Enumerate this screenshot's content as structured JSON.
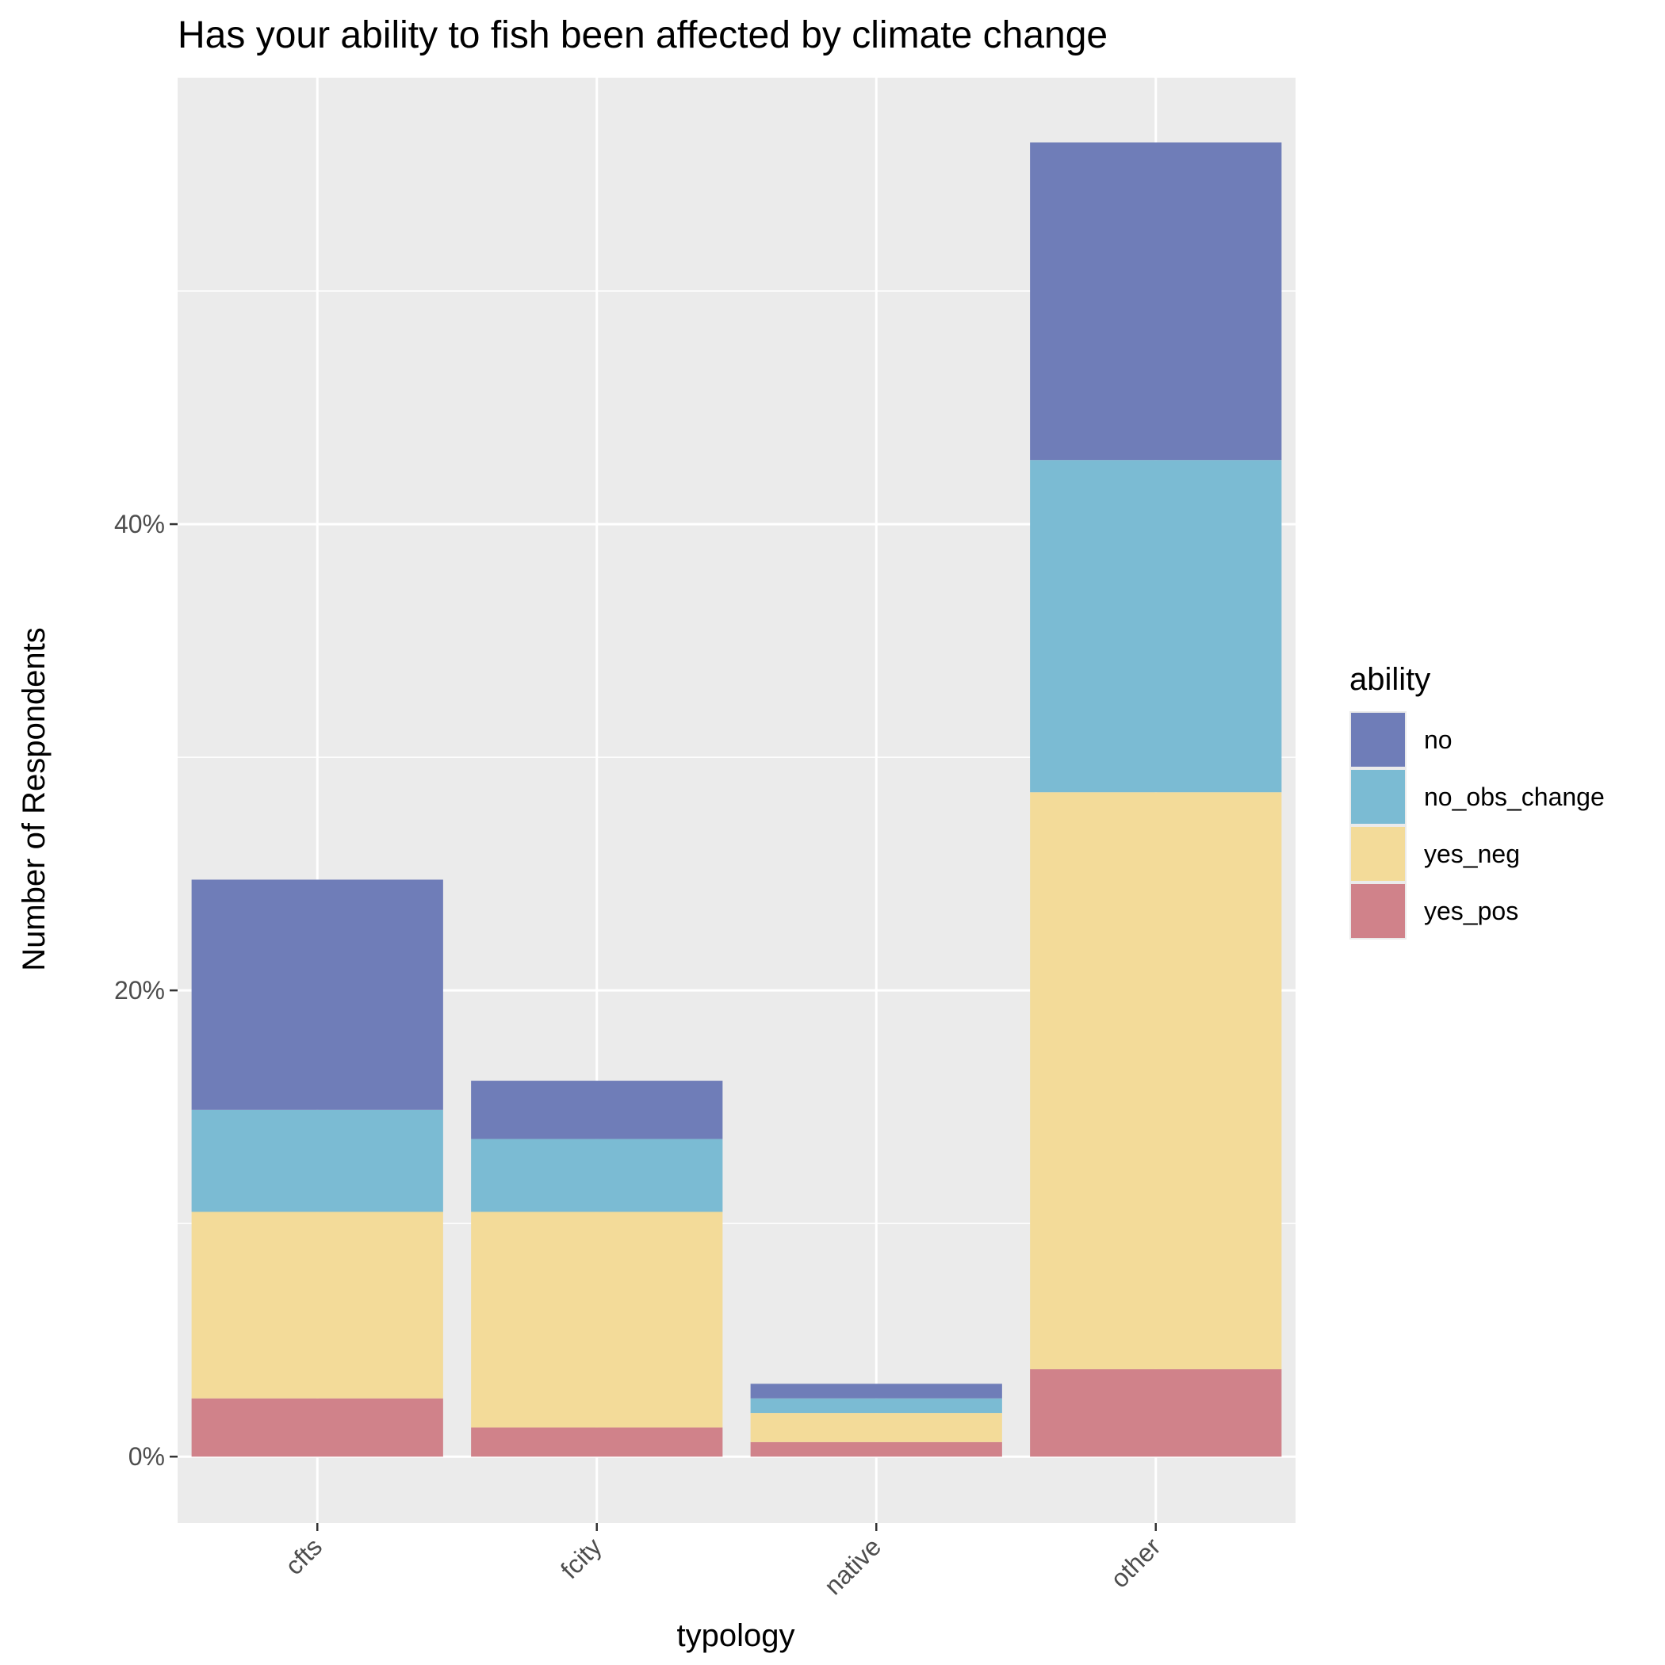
{
  "chart_data": {
    "type": "bar",
    "stacked": true,
    "title": "Has your ability to fish been affected by climate change",
    "xlabel": "typology",
    "ylabel": "Number of Respondents",
    "categories": [
      "cfts",
      "fcity",
      "native",
      "other"
    ],
    "series": [
      {
        "name": "yes_pos",
        "color": "#d0828a",
        "values": [
          2.5,
          1.25,
          0.625,
          3.75
        ]
      },
      {
        "name": "yes_neg",
        "color": "#f3db99",
        "values": [
          8.0,
          9.25,
          1.25,
          24.75
        ]
      },
      {
        "name": "no_obs_change",
        "color": "#7bbbd3",
        "values": [
          4.375,
          3.125,
          0.625,
          14.25
        ]
      },
      {
        "name": "no",
        "color": "#6f7db8",
        "values": [
          9.875,
          2.5,
          0.625,
          13.625
        ]
      }
    ],
    "ylim": [
      -2.85,
      59.15
    ],
    "yticks": [
      0,
      20,
      40
    ],
    "ytick_labels": [
      "0%",
      "20%",
      "40%"
    ],
    "grid": true,
    "panel_background": "#ebebeb",
    "legend": {
      "title": "ability",
      "position": "right",
      "entries": [
        "no",
        "no_obs_change",
        "yes_neg",
        "yes_pos"
      ]
    }
  }
}
